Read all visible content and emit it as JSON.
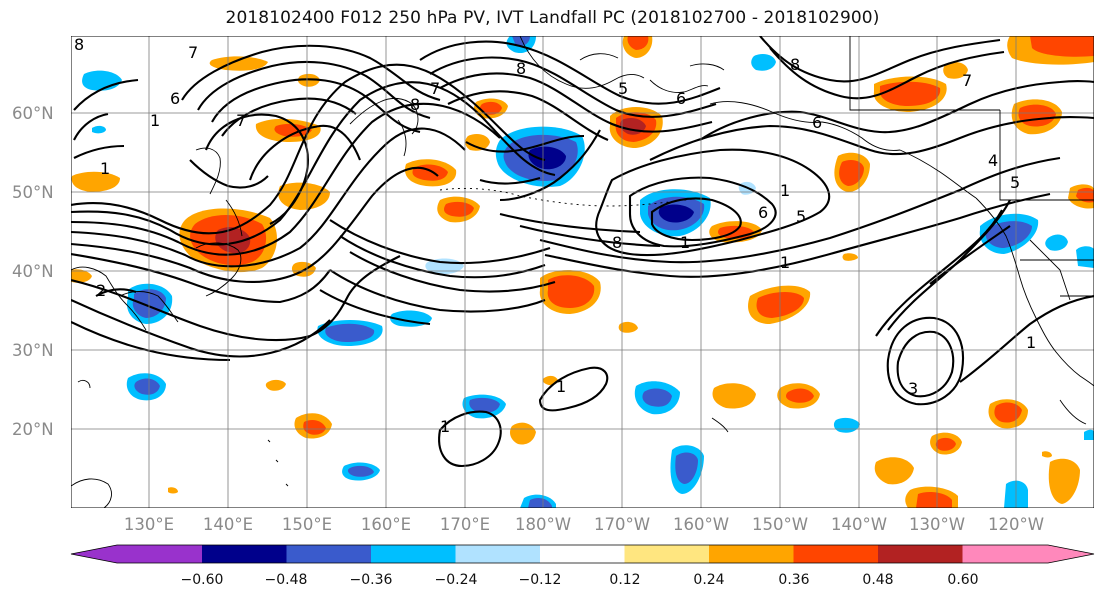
{
  "title": "2018102400 F012 250 hPa PV, IVT Landfall PC (2018102700 - 2018102900)",
  "map": {
    "latitude_labels": [
      "60°N",
      "50°N",
      "40°N",
      "30°N",
      "20°N"
    ],
    "longitude_labels": [
      "130°E",
      "140°E",
      "150°E",
      "160°E",
      "170°E",
      "180°W",
      "170°W",
      "160°W",
      "150°W",
      "140°W",
      "130°W",
      "120°W"
    ],
    "contour_labels": [
      "8",
      "7",
      "6",
      "1",
      "1",
      "7",
      "8",
      "8",
      "5",
      "6",
      "7",
      "8",
      "7",
      "1",
      "8",
      "6",
      "5",
      "1",
      "4",
      "5",
      "6",
      "2",
      "3",
      "1",
      "1",
      "1",
      "1"
    ],
    "contour_color": "#000000"
  },
  "colorbar": {
    "tick_labels": [
      "−0.60",
      "−0.48",
      "−0.36",
      "−0.24",
      "−0.12",
      "0.12",
      "0.24",
      "0.36",
      "0.48",
      "0.60"
    ],
    "colors": [
      "#9932cc",
      "#00008b",
      "#3a5bcc",
      "#00bfff",
      "#b0e2ff",
      "#ffffff",
      "#ffe680",
      "#ffa500",
      "#ff4500",
      "#b22222",
      "#ff88bb"
    ]
  }
}
